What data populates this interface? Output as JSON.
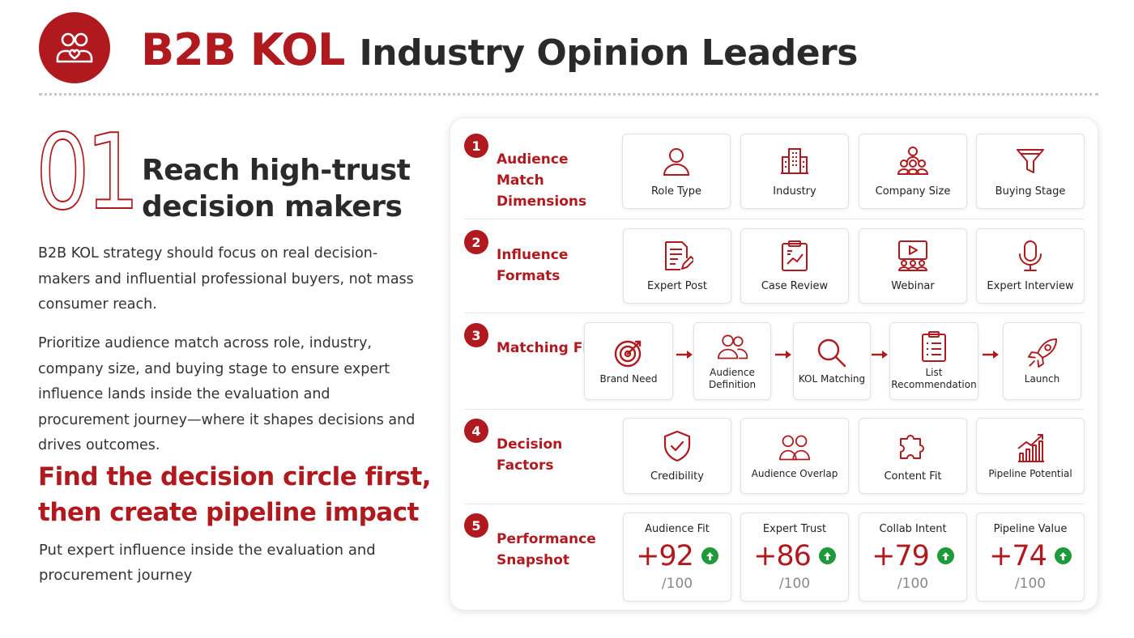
{
  "header": {
    "title_accent": "B2B KOL",
    "title_main": "Industry Opinion Leaders"
  },
  "section": {
    "number": "01",
    "heading_line1": "Reach high-trust",
    "heading_line2": "decision makers",
    "paragraph1": "B2B KOL strategy should focus on real decision-makers and influential professional buyers, not mass consumer reach.",
    "paragraph2": "Prioritize audience match across role, industry, company size, and buying stage to ensure expert influence lands inside the evaluation and procurement journey—where it shapes decisions and drives outcomes.",
    "callout": "Find the decision circle first,\nthen create pipeline impact",
    "note": "Put expert influence inside the evaluation and procurement journey"
  },
  "panel": {
    "rows": [
      {
        "step": "1",
        "label": "Audience Match Dimensions",
        "cards": [
          {
            "label": "Role Type",
            "icon": "user-icon"
          },
          {
            "label": "Industry",
            "icon": "building-icon"
          },
          {
            "label": "Company Size",
            "icon": "group-icon"
          },
          {
            "label": "Buying Stage",
            "icon": "funnel-icon"
          }
        ]
      },
      {
        "step": "2",
        "label": "Influence Formats",
        "cards": [
          {
            "label": "Expert Post",
            "icon": "document-pen-icon"
          },
          {
            "label": "Case Review",
            "icon": "clipboard-chart-icon"
          },
          {
            "label": "Webinar",
            "icon": "video-audience-icon"
          },
          {
            "label": "Expert Interview",
            "icon": "microphone-icon"
          }
        ]
      },
      {
        "step": "3",
        "label": "Matching Flow",
        "cards": [
          {
            "label": "Brand Need",
            "icon": "target-icon"
          },
          {
            "label": "Audience Definition",
            "icon": "users-icon"
          },
          {
            "label": "KOL Matching",
            "icon": "search-icon"
          },
          {
            "label": "List Recommendation",
            "icon": "list-icon"
          },
          {
            "label": "Launch",
            "icon": "rocket-icon"
          }
        ]
      },
      {
        "step": "4",
        "label": "Decision Factors",
        "cards": [
          {
            "label": "Credibility",
            "icon": "shield-check-icon"
          },
          {
            "label": "Audience Overlap",
            "icon": "users-overlap-icon"
          },
          {
            "label": "Content Fit",
            "icon": "puzzle-icon"
          },
          {
            "label": "Pipeline Potential",
            "icon": "bar-growth-icon"
          }
        ]
      },
      {
        "step": "5",
        "label": "Performance Snapshot",
        "metrics": [
          {
            "title": "Audience Fit",
            "value": "+92",
            "denominator": "/100"
          },
          {
            "title": "Expert Trust",
            "value": "+86",
            "denominator": "/100"
          },
          {
            "title": "Collab Intent",
            "value": "+79",
            "denominator": "/100"
          },
          {
            "title": "Pipeline Value",
            "value": "+74",
            "denominator": "/100"
          }
        ]
      }
    ]
  },
  "colors": {
    "accent": "#b01a1f",
    "positive": "#1f9a3a",
    "text": "#2a2a2a"
  }
}
